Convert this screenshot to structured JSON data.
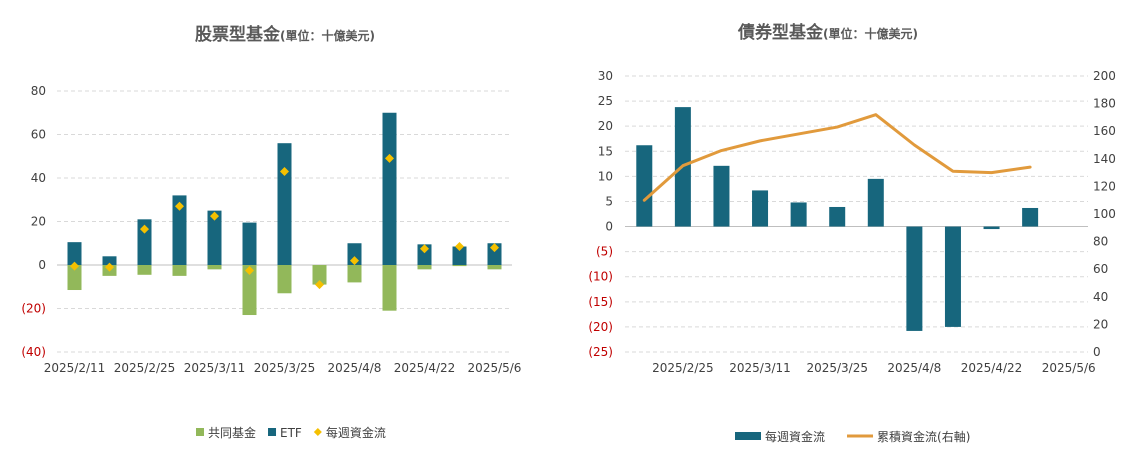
{
  "chart_data": [
    {
      "type": "bar",
      "title": "股票型基金",
      "title_unit": "(單位：十億美元)",
      "categories": [
        "2025/2/11",
        "2025/2/18",
        "2025/2/25",
        "2025/3/4",
        "2025/3/11",
        "2025/3/18",
        "2025/3/25",
        "2025/4/1",
        "2025/4/8",
        "2025/4/15",
        "2025/4/22",
        "2025/4/29",
        "2025/5/6"
      ],
      "x_tick_labels": [
        "2025/2/11",
        "2025/2/25",
        "2025/3/11",
        "2025/3/25",
        "2025/4/8",
        "2025/4/22",
        "2025/5/6"
      ],
      "y_tick_labels": [
        "80",
        "60",
        "40",
        "20",
        "0",
        "(20)",
        "(40)"
      ],
      "ylim": [
        -40,
        80
      ],
      "stacked": true,
      "grid": true,
      "legend_position": "bottom",
      "series": [
        {
          "name": "共同基金",
          "type": "bar",
          "color": "#92b85a",
          "values": [
            -11.5,
            -5,
            -4.5,
            -5,
            -2,
            -23,
            -13,
            -9,
            -8,
            -21,
            -2,
            -0.5,
            -2
          ]
        },
        {
          "name": "ETF",
          "type": "bar",
          "color": "#17667d",
          "values": [
            10.5,
            4,
            21,
            32,
            25,
            19.5,
            56,
            0,
            10,
            70,
            9.5,
            8.5,
            10
          ]
        },
        {
          "name": "每週資金流",
          "type": "scatter",
          "color": "#f5c000",
          "values": [
            -0.5,
            -1,
            16.5,
            27,
            22.5,
            -2.5,
            43,
            -9,
            2,
            49,
            7.5,
            8.5,
            8
          ]
        }
      ]
    },
    {
      "type": "bar",
      "title": "債券型基金",
      "title_unit": "(單位：十億美元)",
      "categories": [
        "2025/2/18",
        "2025/2/25",
        "2025/3/4",
        "2025/3/11",
        "2025/3/18",
        "2025/3/25",
        "2025/4/1",
        "2025/4/8",
        "2025/4/15",
        "2025/4/22",
        "2025/4/29",
        "2025/5/6"
      ],
      "x_tick_labels": [
        "2025/2/25",
        "2025/3/11",
        "2025/3/25",
        "2025/4/8",
        "2025/4/22",
        "2025/5/6"
      ],
      "y_tick_labels": [
        "30",
        "25",
        "20",
        "15",
        "10",
        "5",
        "0",
        "(5)",
        "(10)",
        "(15)",
        "(20)",
        "(25)"
      ],
      "y2_tick_labels": [
        "200",
        "180",
        "160",
        "140",
        "120",
        "100",
        "80",
        "60",
        "40",
        "20",
        "0"
      ],
      "ylim": [
        -25,
        30
      ],
      "y2lim": [
        0,
        200
      ],
      "grid": true,
      "legend_position": "bottom",
      "series": [
        {
          "name": "每週資金流",
          "type": "bar",
          "color": "#17667d",
          "values": [
            16.2,
            23.8,
            12.1,
            7.2,
            4.8,
            3.9,
            9.5,
            -20.8,
            -20,
            -0.5,
            3.7,
            null
          ]
        },
        {
          "name": "累積資金流(右軸)",
          "type": "line",
          "axis": "right",
          "color": "#e19a3c",
          "values": [
            110,
            135,
            146,
            153,
            158,
            163,
            172,
            150,
            131,
            130,
            134,
            null
          ]
        }
      ]
    }
  ]
}
